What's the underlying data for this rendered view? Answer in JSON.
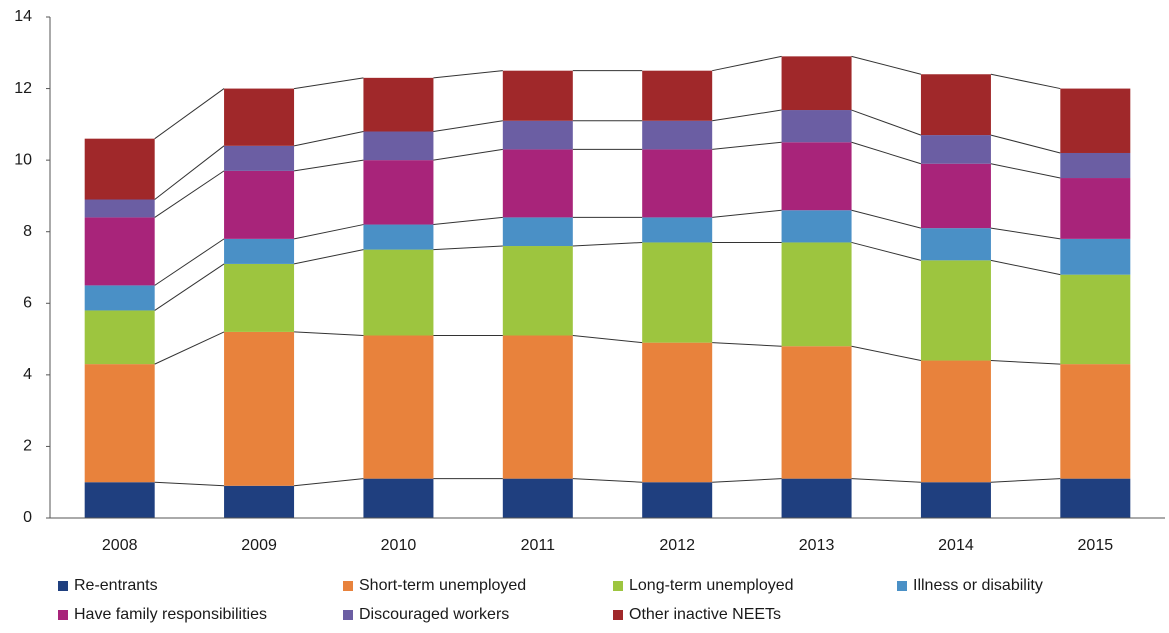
{
  "chart_data": {
    "type": "stacked-bar",
    "categories": [
      "2008",
      "2009",
      "2010",
      "2011",
      "2012",
      "2013",
      "2014",
      "2015"
    ],
    "series": [
      {
        "name": "Re-entrants",
        "color": "#1f3f7f",
        "values": [
          1.0,
          0.9,
          1.1,
          1.1,
          1.0,
          1.1,
          1.0,
          1.1
        ]
      },
      {
        "name": "Short-term unemployed",
        "color": "#e8823c",
        "values": [
          3.3,
          4.3,
          4.0,
          4.0,
          3.9,
          3.7,
          3.4,
          3.2
        ]
      },
      {
        "name": "Long-term unemployed",
        "color": "#9dc53f",
        "values": [
          1.5,
          1.9,
          2.4,
          2.5,
          2.8,
          2.9,
          2.8,
          2.5
        ]
      },
      {
        "name": "Illness or disability",
        "color": "#4a90c6",
        "values": [
          0.7,
          0.7,
          0.7,
          0.8,
          0.7,
          0.9,
          0.9,
          1.0
        ]
      },
      {
        "name": "Have family responsibilities",
        "color": "#a8247a",
        "values": [
          1.9,
          1.9,
          1.8,
          1.9,
          1.9,
          1.9,
          1.8,
          1.7
        ]
      },
      {
        "name": "Discouraged workers",
        "color": "#6b5ea3",
        "values": [
          0.5,
          0.7,
          0.8,
          0.8,
          0.8,
          0.9,
          0.8,
          0.7
        ]
      },
      {
        "name": "Other inactive NEETs",
        "color": "#a0282a",
        "values": [
          1.7,
          1.6,
          1.5,
          1.4,
          1.4,
          1.5,
          1.7,
          1.8
        ]
      }
    ],
    "ylim": [
      0,
      14
    ],
    "yticks": [
      0,
      2,
      4,
      6,
      8,
      10,
      12,
      14
    ],
    "legend": "bottom"
  }
}
